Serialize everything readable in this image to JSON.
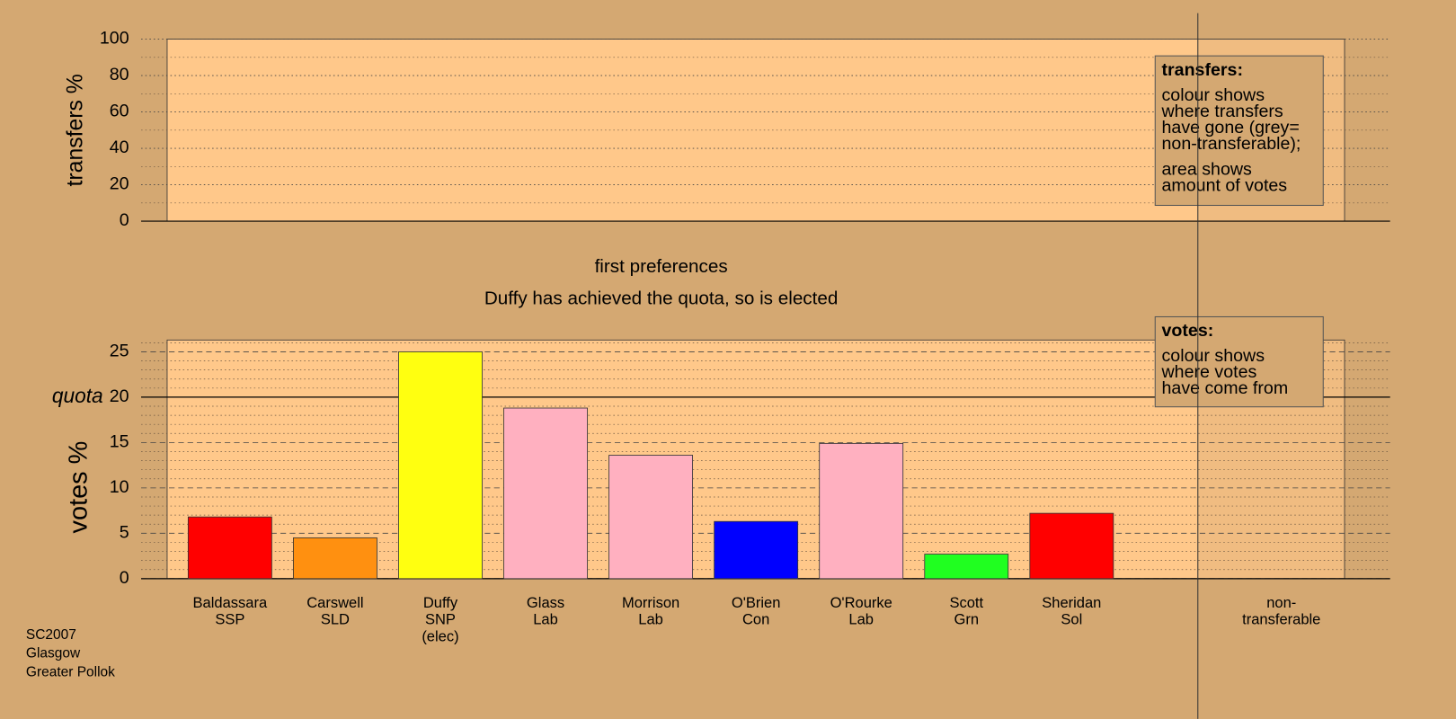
{
  "chart_data": [
    {
      "type": "bar",
      "ylabel": "transfers %",
      "ylim": [
        0,
        100
      ],
      "yticks": [
        0,
        20,
        40,
        60,
        80,
        100
      ],
      "minor_yticks": [
        10,
        30,
        50,
        70,
        90
      ],
      "categories": [],
      "values": [],
      "legend": {
        "heading": "transfers:",
        "paragraphs": [
          [
            "colour shows",
            "where transfers",
            "have gone (grey=",
            "non-transferable);"
          ],
          [
            "area shows",
            "amount of votes"
          ]
        ]
      }
    },
    {
      "type": "bar",
      "title": "first preferences",
      "subtitle": "Duffy has achieved the quota, so is elected",
      "ylabel": "votes %",
      "ylim": [
        0,
        26.3
      ],
      "yticks": [
        0,
        5,
        10,
        15,
        20,
        25
      ],
      "minor_yticks": [
        1,
        2,
        3,
        4,
        6,
        7,
        8,
        9,
        11,
        12,
        13,
        14,
        16,
        17,
        18,
        19,
        21,
        22,
        23,
        24,
        26
      ],
      "reference_line": {
        "value": 20,
        "label": "quota"
      },
      "categories": [
        [
          "Baldassara",
          "SSP"
        ],
        [
          "Carswell",
          "SLD"
        ],
        [
          "Duffy",
          "SNP",
          "(elec)"
        ],
        [
          "Glass",
          "Lab"
        ],
        [
          "Morrison",
          "Lab"
        ],
        [
          "O'Brien",
          "Con"
        ],
        [
          "O'Rourke",
          "Lab"
        ],
        [
          "Scott",
          "Grn"
        ],
        [
          "Sheridan",
          "Sol"
        ],
        [
          "non-",
          "transferable"
        ]
      ],
      "values": [
        6.8,
        4.5,
        25.0,
        18.8,
        13.6,
        6.3,
        14.9,
        2.7,
        7.2,
        null
      ],
      "colors": [
        "#ff0000",
        "#ff9010",
        "#ffff10",
        "#ffb0c0",
        "#ffb0c0",
        "#0000ff",
        "#ffb0c0",
        "#20ff20",
        "#ff0000",
        "#999999"
      ],
      "legend": {
        "heading": "votes:",
        "paragraphs": [
          [
            "colour shows",
            "where votes",
            "have come from"
          ]
        ]
      }
    }
  ],
  "footer": [
    "SC2007",
    "Glasgow",
    "Greater Pollok"
  ]
}
